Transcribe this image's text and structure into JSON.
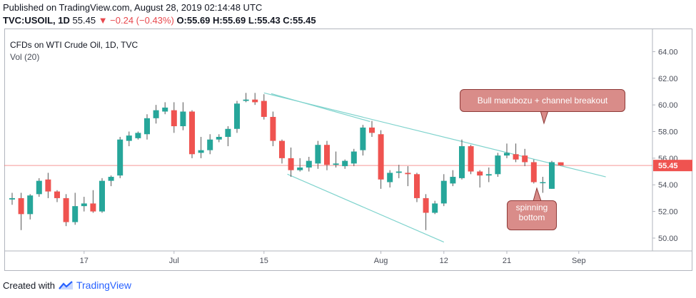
{
  "header": {
    "published": "Published on TradingView.com, August 28, 2019 02:14:48 UTC",
    "symbol": "TVC:USOIL, 1D",
    "last": "55.45",
    "change": "▼ −0.24 (−0.43%)",
    "ohlc": "O:55.69 H:55.69 L:55.43 C:55.45"
  },
  "chart_data": {
    "type": "candlestick",
    "title": "CFDs on WTI Crude Oil, 1D, TVC",
    "indicator": "Vol (20)",
    "ylim": [
      48.5,
      65.2
    ],
    "y_ticks": [
      "64.00",
      "62.00",
      "60.00",
      "58.00",
      "56.00",
      "54.00",
      "52.00",
      "50.00"
    ],
    "x_ticks": [
      {
        "label": "17",
        "index": 8
      },
      {
        "label": "Jul",
        "index": 18
      },
      {
        "label": "15",
        "index": 28
      },
      {
        "label": "Aug",
        "index": 41
      },
      {
        "label": "12",
        "index": 48
      },
      {
        "label": "21",
        "index": 55
      },
      {
        "label": "Sep",
        "index": 63
      }
    ],
    "last_price": 55.45,
    "last_price_label": "55.45",
    "candles": [
      {
        "o": 52.9,
        "h": 53.4,
        "l": 52.5,
        "c": 53.0
      },
      {
        "o": 53.0,
        "h": 53.4,
        "l": 50.6,
        "c": 51.8
      },
      {
        "o": 51.8,
        "h": 53.3,
        "l": 51.4,
        "c": 53.2
      },
      {
        "o": 53.3,
        "h": 54.5,
        "l": 53.1,
        "c": 54.3
      },
      {
        "o": 54.4,
        "h": 54.9,
        "l": 53.0,
        "c": 53.5
      },
      {
        "o": 53.5,
        "h": 53.6,
        "l": 52.7,
        "c": 53.0
      },
      {
        "o": 53.0,
        "h": 53.3,
        "l": 50.9,
        "c": 51.2
      },
      {
        "o": 51.2,
        "h": 53.4,
        "l": 51.0,
        "c": 52.4
      },
      {
        "o": 52.4,
        "h": 53.1,
        "l": 52.0,
        "c": 52.6
      },
      {
        "o": 52.6,
        "h": 53.6,
        "l": 51.9,
        "c": 52.0
      },
      {
        "o": 52.0,
        "h": 54.5,
        "l": 51.9,
        "c": 54.3
      },
      {
        "o": 54.3,
        "h": 54.7,
        "l": 53.9,
        "c": 54.6
      },
      {
        "o": 54.7,
        "h": 57.6,
        "l": 54.5,
        "c": 57.4
      },
      {
        "o": 57.3,
        "h": 58.0,
        "l": 56.9,
        "c": 57.7
      },
      {
        "o": 57.5,
        "h": 58.0,
        "l": 57.4,
        "c": 57.9
      },
      {
        "o": 57.8,
        "h": 59.3,
        "l": 57.4,
        "c": 59.0
      },
      {
        "o": 59.0,
        "h": 60.0,
        "l": 58.6,
        "c": 59.6
      },
      {
        "o": 59.5,
        "h": 60.2,
        "l": 59.3,
        "c": 59.8
      },
      {
        "o": 59.6,
        "h": 60.2,
        "l": 57.9,
        "c": 58.4
      },
      {
        "o": 58.4,
        "h": 60.2,
        "l": 58.1,
        "c": 59.5
      },
      {
        "o": 59.5,
        "h": 59.6,
        "l": 56.0,
        "c": 56.3
      },
      {
        "o": 56.4,
        "h": 57.6,
        "l": 56.0,
        "c": 56.6
      },
      {
        "o": 56.6,
        "h": 57.8,
        "l": 56.3,
        "c": 57.4
      },
      {
        "o": 57.4,
        "h": 57.8,
        "l": 57.2,
        "c": 57.6
      },
      {
        "o": 57.6,
        "h": 58.4,
        "l": 56.9,
        "c": 58.2
      },
      {
        "o": 58.2,
        "h": 60.3,
        "l": 57.9,
        "c": 60.1
      },
      {
        "o": 60.3,
        "h": 60.9,
        "l": 60.2,
        "c": 60.4
      },
      {
        "o": 60.4,
        "h": 60.9,
        "l": 60.0,
        "c": 60.2
      },
      {
        "o": 60.3,
        "h": 60.8,
        "l": 58.9,
        "c": 59.1
      },
      {
        "o": 59.1,
        "h": 59.5,
        "l": 56.9,
        "c": 57.3
      },
      {
        "o": 57.3,
        "h": 57.4,
        "l": 55.6,
        "c": 56.0
      },
      {
        "o": 56.0,
        "h": 56.8,
        "l": 54.6,
        "c": 55.1
      },
      {
        "o": 55.1,
        "h": 56.0,
        "l": 55.0,
        "c": 55.3
      },
      {
        "o": 55.3,
        "h": 56.1,
        "l": 55.0,
        "c": 55.8
      },
      {
        "o": 55.6,
        "h": 57.3,
        "l": 55.2,
        "c": 57.0
      },
      {
        "o": 57.0,
        "h": 57.3,
        "l": 55.1,
        "c": 55.5
      },
      {
        "o": 55.5,
        "h": 56.5,
        "l": 55.3,
        "c": 55.6
      },
      {
        "o": 55.4,
        "h": 55.9,
        "l": 55.2,
        "c": 55.8
      },
      {
        "o": 55.6,
        "h": 56.7,
        "l": 55.4,
        "c": 56.5
      },
      {
        "o": 56.6,
        "h": 58.5,
        "l": 56.2,
        "c": 58.3
      },
      {
        "o": 58.3,
        "h": 58.8,
        "l": 57.6,
        "c": 57.9
      },
      {
        "o": 57.8,
        "h": 58.1,
        "l": 53.7,
        "c": 54.4
      },
      {
        "o": 54.2,
        "h": 55.1,
        "l": 53.8,
        "c": 54.9
      },
      {
        "o": 54.9,
        "h": 55.5,
        "l": 54.5,
        "c": 55.0
      },
      {
        "o": 54.9,
        "h": 55.4,
        "l": 53.9,
        "c": 54.8
      },
      {
        "o": 54.8,
        "h": 54.9,
        "l": 52.7,
        "c": 53.0
      },
      {
        "o": 53.0,
        "h": 53.3,
        "l": 50.6,
        "c": 51.9
      },
      {
        "o": 51.9,
        "h": 52.8,
        "l": 51.8,
        "c": 52.6
      },
      {
        "o": 52.6,
        "h": 54.8,
        "l": 52.4,
        "c": 54.3
      },
      {
        "o": 54.1,
        "h": 55.1,
        "l": 53.9,
        "c": 54.6
      },
      {
        "o": 54.5,
        "h": 57.4,
        "l": 54.4,
        "c": 56.9
      },
      {
        "o": 56.9,
        "h": 57.0,
        "l": 54.8,
        "c": 55.0
      },
      {
        "o": 55.0,
        "h": 55.1,
        "l": 53.8,
        "c": 54.7
      },
      {
        "o": 54.7,
        "h": 55.3,
        "l": 54.2,
        "c": 54.8
      },
      {
        "o": 54.8,
        "h": 56.4,
        "l": 54.6,
        "c": 56.2
      },
      {
        "o": 56.2,
        "h": 57.1,
        "l": 56.0,
        "c": 56.4
      },
      {
        "o": 56.3,
        "h": 57.1,
        "l": 55.7,
        "c": 55.9
      },
      {
        "o": 56.2,
        "h": 56.7,
        "l": 55.4,
        "c": 55.7
      },
      {
        "o": 55.7,
        "h": 55.9,
        "l": 54.1,
        "c": 54.2
      },
      {
        "o": 54.2,
        "h": 54.6,
        "l": 53.4,
        "c": 54.2
      },
      {
        "o": 53.7,
        "h": 55.8,
        "l": 53.7,
        "c": 55.7
      },
      {
        "o": 55.69,
        "h": 55.69,
        "l": 55.43,
        "c": 55.45
      }
    ],
    "annotations": [
      {
        "text": "Bull marubozu + channel breakout"
      },
      {
        "text": "spinning bottom"
      }
    ],
    "trendlines": [
      {
        "from": {
          "i": 28,
          "p": 60.9
        },
        "to": {
          "i": 66,
          "p": 54.6
        }
      },
      {
        "from": {
          "i": 28.8,
          "p": 60.85
        },
        "to": {
          "i": 39.8,
          "p": 58.75
        }
      },
      {
        "from": {
          "i": 30.6,
          "p": 54.8
        },
        "to": {
          "i": 48.0,
          "p": 49.7
        }
      }
    ],
    "colors": {
      "up": "#26a69a",
      "down": "#ef5350",
      "wick": "#555555",
      "trendline": "#7fd3cd",
      "last_price_line": "#ef5350"
    }
  },
  "footer": {
    "created_with": "Created with",
    "brand": "TradingView"
  }
}
